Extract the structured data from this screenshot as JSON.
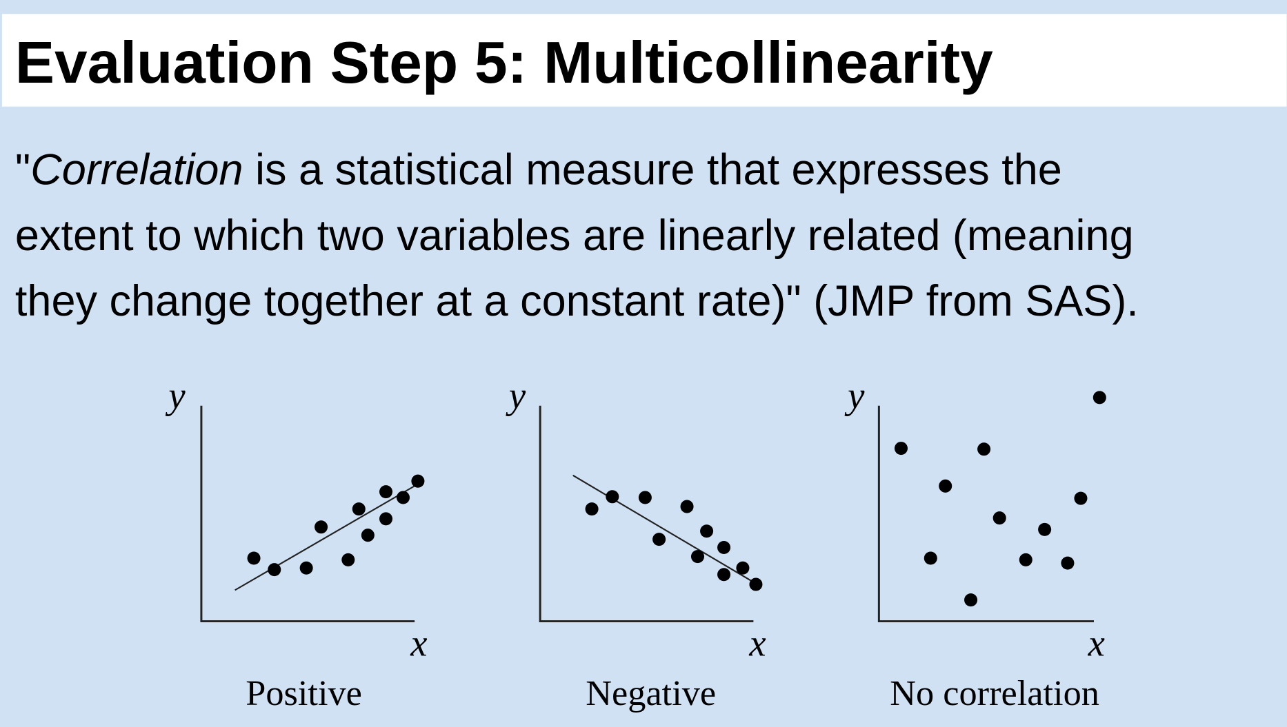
{
  "header": {
    "title": "Evaluation Step 5: Multicollinearity"
  },
  "paragraph": {
    "line1": [
      "\"",
      "Correlation",
      " is a statistical measure that expresses the"
    ],
    "line2": "extent to which two variables are linearly related (meaning",
    "line3": "they change together at a constant rate)\" (JMP from SAS)."
  },
  "panels": [
    {
      "y_label": "y",
      "x_label": "x",
      "caption": "Positive"
    },
    {
      "y_label": "y",
      "x_label": "x",
      "caption": "Negative"
    },
    {
      "y_label": "y",
      "x_label": "x",
      "caption": "No correlation"
    }
  ]
}
